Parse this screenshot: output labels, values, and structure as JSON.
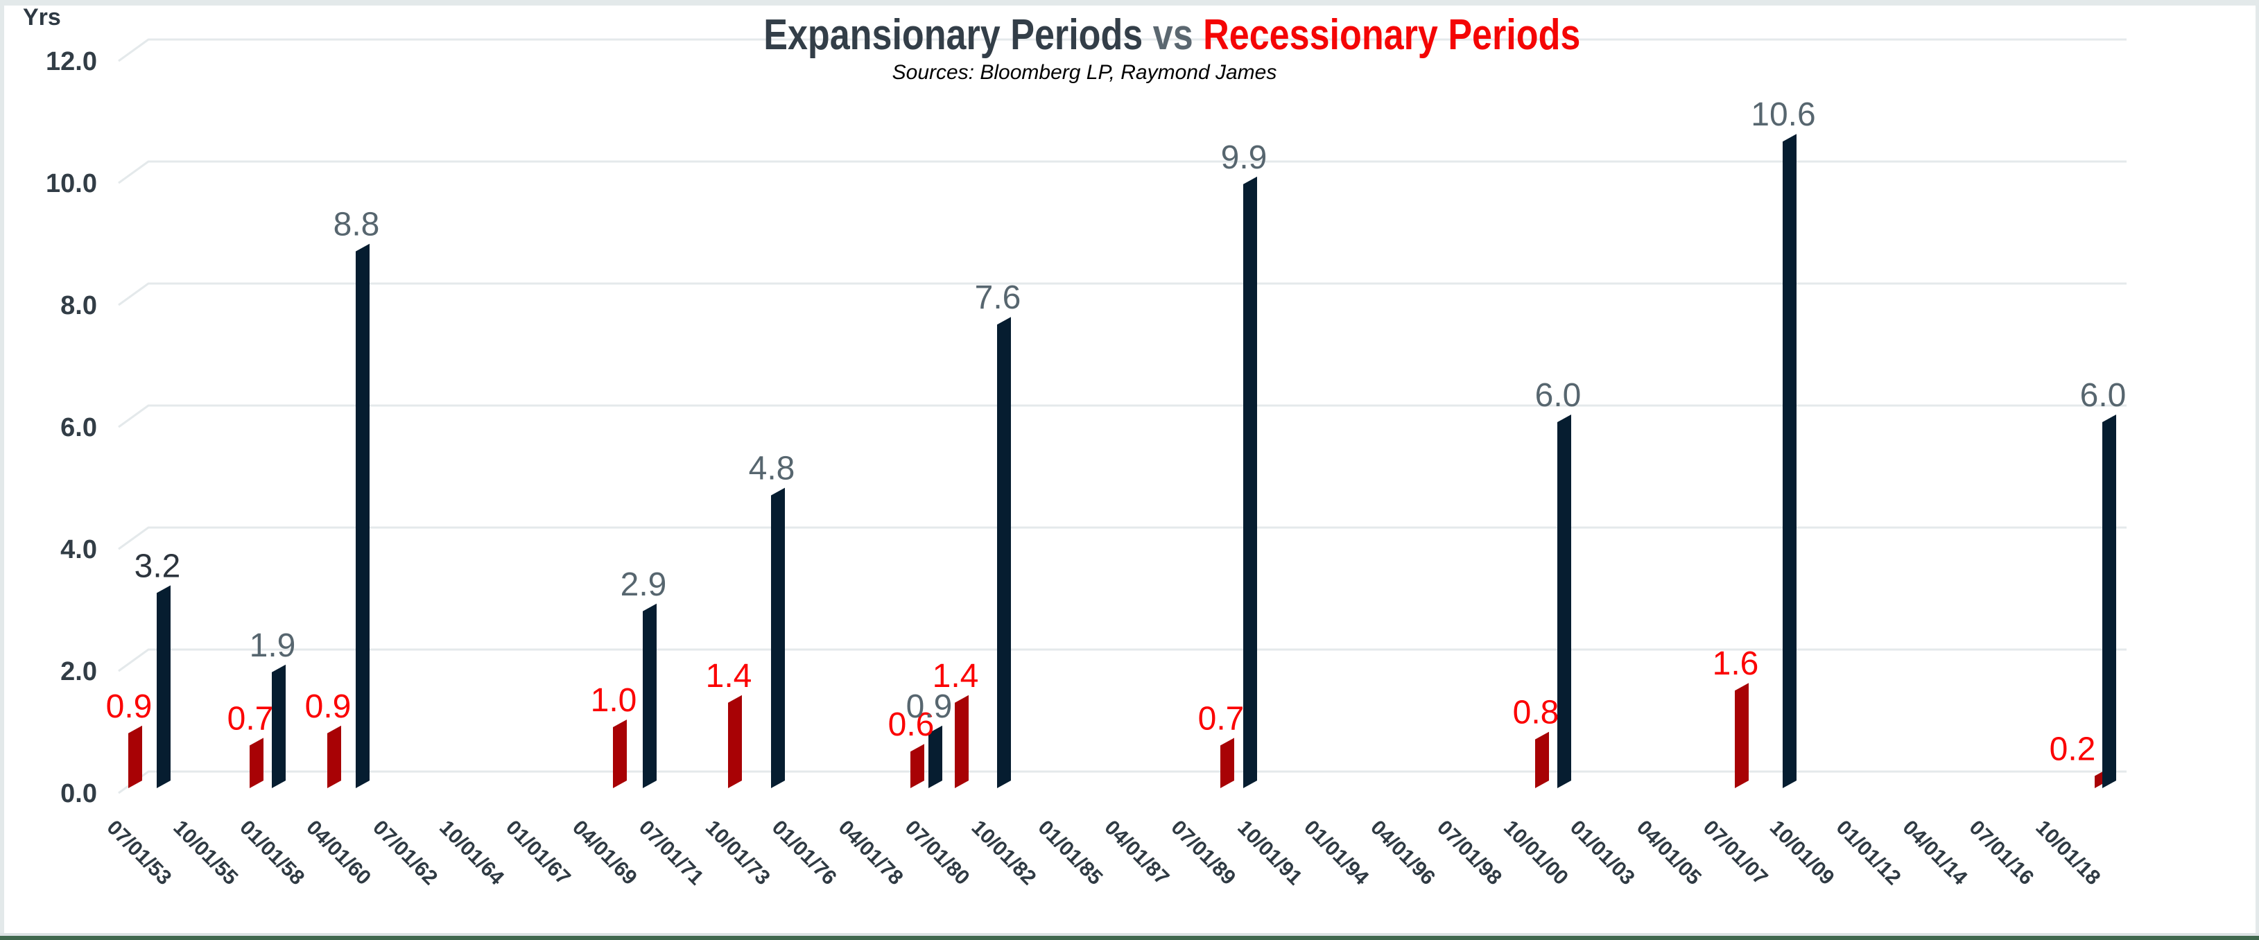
{
  "frame": {
    "border_color": "#e3e9ea",
    "bottom_rule_color": "#dce2e4",
    "bottom_strip_color": "#40684e"
  },
  "header": {
    "title_expansionary": "Expansionary Periods",
    "title_vs": " vs ",
    "title_recessionary": "Recessionary Periods",
    "subtitle": "Sources: Bloomberg LP, Raymond James",
    "title_dark_color": "#333e48",
    "title_vs_color": "#5b6770",
    "title_red_color": "#f40505"
  },
  "y_axis": {
    "unit_label": "Yrs",
    "tick_labels": [
      "12.0",
      "10.0",
      "8.0",
      "6.0",
      "4.0",
      "2.0",
      "0.0"
    ],
    "tick_values": [
      12,
      10,
      8,
      6,
      4,
      2,
      0
    ],
    "tick_color": "#323d46"
  },
  "x_axis": {
    "label_color": "#2f3a43",
    "labels": [
      "07/01/53",
      "10/01/55",
      "01/01/58",
      "04/01/60",
      "07/01/62",
      "10/01/64",
      "01/01/67",
      "04/01/69",
      "07/01/71",
      "10/01/73",
      "01/01/76",
      "04/01/78",
      "07/01/80",
      "10/01/82",
      "01/01/85",
      "04/01/87",
      "07/01/89",
      "10/01/91",
      "01/01/94",
      "04/01/96",
      "07/01/98",
      "10/01/00",
      "01/01/03",
      "04/01/05",
      "07/01/07",
      "10/01/09",
      "01/01/12",
      "04/01/14",
      "07/01/16",
      "10/01/18"
    ]
  },
  "series_colors": {
    "recession_bar": "#a80205",
    "expansion_bar": "#061d30",
    "recession_label": "#fb0000",
    "expansion_label": "#57666f",
    "expansion_label_dark": "#2c343d",
    "gridline": "#e4e9eb"
  },
  "chart_data": {
    "type": "bar",
    "title": "Expansionary Periods vs Recessionary Periods",
    "subtitle": "Sources: Bloomberg LP, Raymond James",
    "ylabel": "Yrs",
    "ylim": [
      0,
      12
    ],
    "ytick_step": 2,
    "grid": true,
    "legend": false,
    "style": "3d-skewed-bars",
    "x_tick_labels": [
      "07/01/53",
      "10/01/55",
      "01/01/58",
      "04/01/60",
      "07/01/62",
      "10/01/64",
      "01/01/67",
      "04/01/69",
      "07/01/71",
      "10/01/73",
      "01/01/76",
      "04/01/78",
      "07/01/80",
      "10/01/82",
      "01/01/85",
      "04/01/87",
      "07/01/89",
      "10/01/91",
      "01/01/94",
      "04/01/96",
      "07/01/98",
      "10/01/00",
      "01/01/03",
      "04/01/05",
      "07/01/07",
      "10/01/09",
      "01/01/12",
      "04/01/14",
      "07/01/16",
      "10/01/18"
    ],
    "series": [
      {
        "name": "Recessionary Periods",
        "values": [
          0.9,
          0.7,
          0.9,
          1.0,
          1.4,
          0.6,
          1.4,
          0.7,
          0.8,
          1.6,
          0.2
        ]
      },
      {
        "name": "Expansionary Periods",
        "values": [
          3.2,
          1.9,
          8.8,
          2.9,
          4.8,
          0.9,
          7.6,
          9.9,
          6.0,
          10.6,
          6.0
        ]
      }
    ],
    "bars": [
      {
        "series": "recession",
        "value": 0.9,
        "x": 185
      },
      {
        "series": "expansion",
        "value": 3.2,
        "x": 226,
        "label_shade": "dark"
      },
      {
        "series": "recession",
        "value": 0.7,
        "x": 360
      },
      {
        "series": "expansion",
        "value": 1.9,
        "x": 392
      },
      {
        "series": "recession",
        "value": 0.9,
        "x": 472
      },
      {
        "series": "expansion",
        "value": 8.8,
        "x": 513
      },
      {
        "series": "recession",
        "value": 1.0,
        "x": 884
      },
      {
        "series": "expansion",
        "value": 2.9,
        "x": 927
      },
      {
        "series": "recession",
        "value": 1.4,
        "x": 1050
      },
      {
        "series": "expansion",
        "value": 4.8,
        "x": 1112
      },
      {
        "series": "recession",
        "value": 0.6,
        "x": 1313
      },
      {
        "series": "expansion",
        "value": 0.9,
        "x": 1339
      },
      {
        "series": "recession",
        "value": 1.4,
        "x": 1377
      },
      {
        "series": "expansion",
        "value": 7.6,
        "x": 1438
      },
      {
        "series": "recession",
        "value": 0.7,
        "x": 1760
      },
      {
        "series": "expansion",
        "value": 9.9,
        "x": 1793
      },
      {
        "series": "recession",
        "value": 0.8,
        "x": 2214
      },
      {
        "series": "expansion",
        "value": 6.0,
        "x": 2246
      },
      {
        "series": "recession",
        "value": 1.6,
        "x": 2502
      },
      {
        "series": "expansion",
        "value": 10.6,
        "x": 2571
      },
      {
        "series": "recession",
        "value": 0.2,
        "x": 3021,
        "label_dx": -33
      },
      {
        "series": "expansion",
        "value": 6.0,
        "x": 3032
      }
    ]
  }
}
